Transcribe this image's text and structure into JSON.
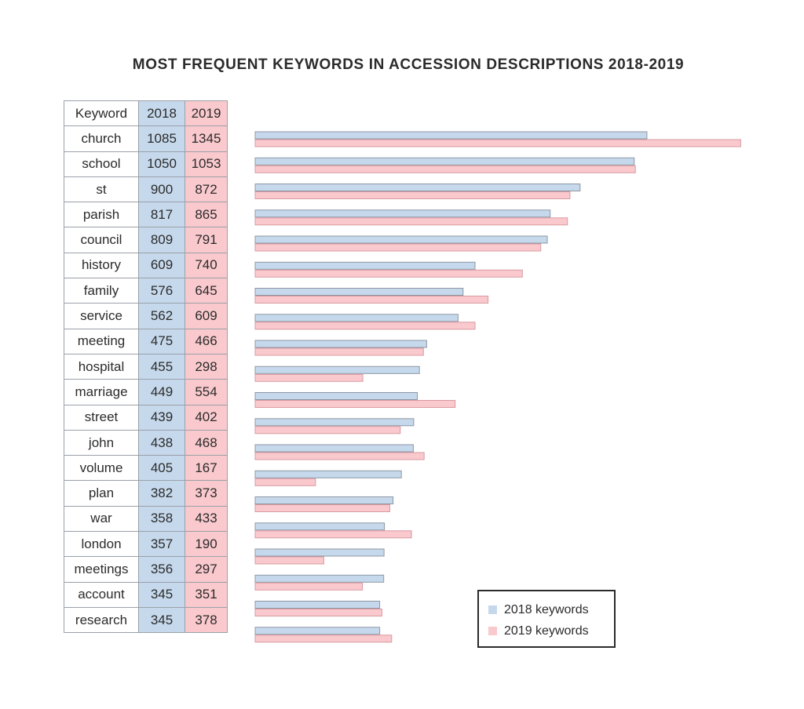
{
  "chart_data": {
    "type": "bar",
    "orientation": "horizontal",
    "title": "MOST FREQUENT KEYWORDS IN ACCESSION DESCRIPTIONS 2018-2019",
    "table_header": [
      "Keyword",
      "2018",
      "2019"
    ],
    "categories": [
      "church",
      "school",
      "st",
      "parish",
      "council",
      "history",
      "family",
      "service",
      "meeting",
      "hospital",
      "marriage",
      "street",
      "john",
      "volume",
      "plan",
      "war",
      "london",
      "meetings",
      "account",
      "research"
    ],
    "series": [
      {
        "name": "2018 keywords",
        "color": "#c6d9ec",
        "values": [
          1085,
          1050,
          900,
          817,
          809,
          609,
          576,
          562,
          475,
          455,
          449,
          439,
          438,
          405,
          382,
          358,
          357,
          356,
          345,
          345
        ]
      },
      {
        "name": "2019 keywords",
        "color": "#f9c9cd",
        "values": [
          1345,
          1053,
          872,
          865,
          791,
          740,
          645,
          609,
          466,
          298,
          554,
          402,
          468,
          167,
          373,
          433,
          190,
          297,
          351,
          378
        ]
      }
    ],
    "legend": "bottom-right",
    "grid": false
  }
}
